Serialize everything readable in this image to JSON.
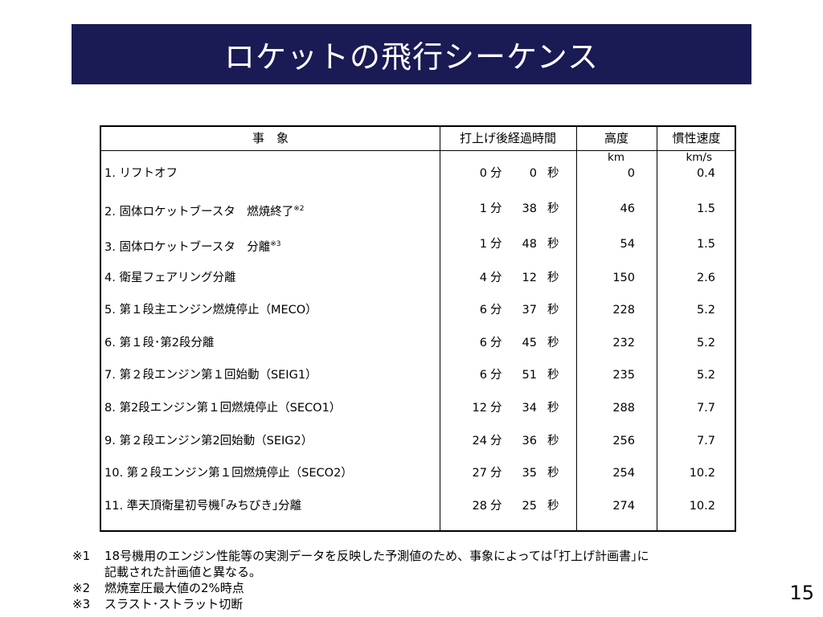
{
  "title": "ロケットの飛行シーケンス",
  "table": {
    "headers": {
      "event": "事　象",
      "elapsed": "打上げ後経過時間",
      "altitude": "高度",
      "velocity": "慣性速度"
    },
    "units": {
      "altitude": "km",
      "velocity": "km/s"
    },
    "min_label": "分",
    "sec_label": "秒",
    "rows": [
      {
        "event": "1. リフトオフ",
        "note": "",
        "min": "0",
        "sec": "0",
        "alt": "0",
        "vel": "0.4"
      },
      {
        "event": "2. 固体ロケットブースタ　燃焼終了",
        "note": "※2",
        "min": "1",
        "sec": "38",
        "alt": "46",
        "vel": "1.5"
      },
      {
        "event": "3. 固体ロケットブースタ　分離",
        "note": "※3",
        "min": "1",
        "sec": "48",
        "alt": "54",
        "vel": "1.5"
      },
      {
        "event": "4. 衛星フェアリング分離",
        "note": "",
        "min": "4",
        "sec": "12",
        "alt": "150",
        "vel": "2.6"
      },
      {
        "event": "5. 第１段主エンジン燃焼停止（MECO）",
        "note": "",
        "min": "6",
        "sec": "37",
        "alt": "228",
        "vel": "5.2"
      },
      {
        "event": "6. 第１段･第2段分離",
        "note": "",
        "min": "6",
        "sec": "45",
        "alt": "232",
        "vel": "5.2"
      },
      {
        "event": "7. 第２段エンジン第１回始動（SEIG1）",
        "note": "",
        "min": "6",
        "sec": "51",
        "alt": "235",
        "vel": "5.2"
      },
      {
        "event": "8. 第2段エンジン第１回燃焼停止（SECO1）",
        "note": "",
        "min": "12",
        "sec": "34",
        "alt": "288",
        "vel": "7.7"
      },
      {
        "event": "9. 第２段エンジン第2回始動（SEIG2）",
        "note": "",
        "min": "24",
        "sec": "36",
        "alt": "256",
        "vel": "7.7"
      },
      {
        "event": "10. 第２段エンジン第１回燃焼停止（SECO2）",
        "note": "",
        "min": "27",
        "sec": "35",
        "alt": "254",
        "vel": "10.2"
      },
      {
        "event": "11. 準天頂衛星初号機｢みちびき｣分離",
        "note": "",
        "min": "28",
        "sec": "25",
        "alt": "274",
        "vel": "10.2"
      }
    ]
  },
  "notes": [
    {
      "mark": "※1",
      "lines": [
        "18号機用のエンジン性能等の実測データを反映した予測値のため、事象によっては｢打上げ計画書｣に",
        "記載された計画値と異なる。"
      ]
    },
    {
      "mark": "※2",
      "lines": [
        "燃焼室圧最大値の2%時点"
      ]
    },
    {
      "mark": "※3",
      "lines": [
        "スラスト･ストラット切断"
      ]
    }
  ],
  "page_number": "15"
}
